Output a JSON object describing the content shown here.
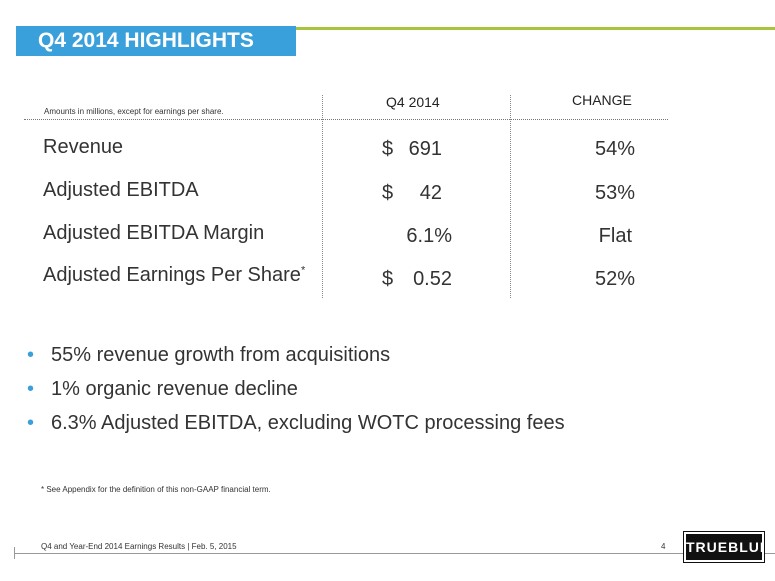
{
  "title": "Q4 2014 HIGHLIGHTS",
  "note": "Amounts in millions, except for earnings per share.",
  "headers": {
    "q4": "Q4 2014",
    "change": "CHANGE"
  },
  "rows": [
    {
      "label": "Revenue",
      "dollar": "$",
      "value": "691",
      "change": "54%"
    },
    {
      "label": "Adjusted EBITDA",
      "dollar": "$",
      "value": "42",
      "change": "53%"
    },
    {
      "label": "Adjusted EBITDA Margin",
      "dollar": "",
      "value": "6.1%",
      "change": "Flat"
    },
    {
      "label": "Adjusted Earnings Per Share",
      "marker": "*",
      "dollar": "$",
      "value": "0.52",
      "change": "52%"
    }
  ],
  "bullets": [
    "55% revenue growth from acquisitions",
    "1% organic revenue decline",
    "6.3% Adjusted EBITDA, excluding WOTC processing fees"
  ],
  "bullet_char": "•",
  "footnote": "* See Appendix for the definition of this non-GAAP financial term.",
  "footer": "Q4 and Year-End 2014 Earnings Results | Feb. 5, 2015",
  "page_number": "4",
  "logo_text": "TRUEBLUE",
  "colors": {
    "title_bg": "#3aa0dc",
    "accent_line": "#a8c33c",
    "bullet": "#3aa0dc"
  }
}
